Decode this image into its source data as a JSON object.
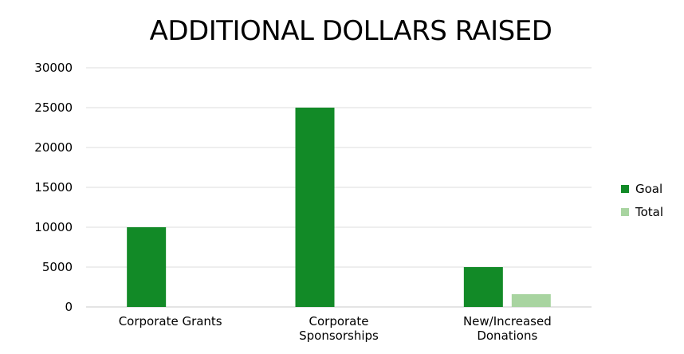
{
  "chart_data": {
    "type": "bar",
    "title": "ADDITIONAL DOLLARS RAISED",
    "xlabel": "",
    "ylabel": "",
    "ylim": [
      0,
      30000
    ],
    "yticks": [
      "0",
      "5000",
      "10000",
      "15000",
      "20000",
      "25000",
      "30000"
    ],
    "categories": [
      [
        "Corporate Grants"
      ],
      [
        "Corporate",
        "Sponsorships"
      ],
      [
        "New/Increased",
        "Donations"
      ]
    ],
    "series": [
      {
        "name": "Goal",
        "color": "#128A27",
        "values": [
          10000,
          25000,
          5000
        ]
      },
      {
        "name": "Total",
        "color": "#A8D4A0",
        "values": [
          0,
          0,
          1600
        ]
      }
    ],
    "grid": true,
    "legend": "right"
  }
}
